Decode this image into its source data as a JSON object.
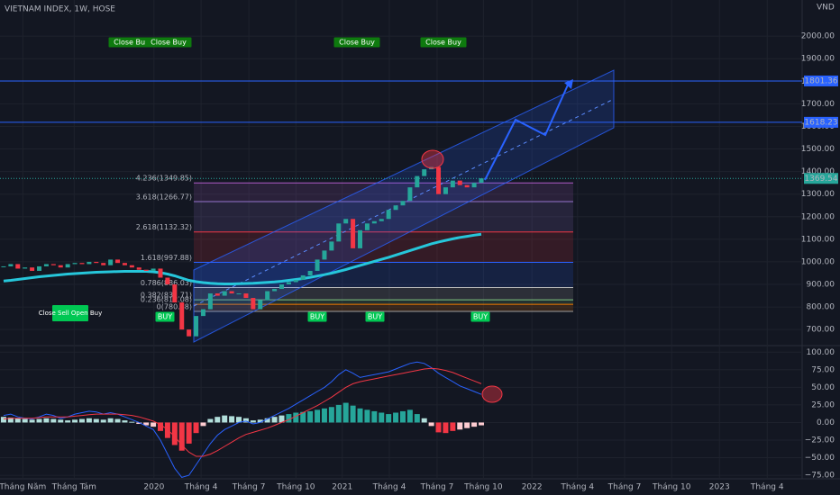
{
  "chart_data": {
    "type": "candlestick",
    "title": "VIETNAM INDEX, 1W, HOSE",
    "currency": "VND",
    "up_color": "#26a69a",
    "down_color": "#f23645",
    "categories": [
      null,
      null,
      null,
      null,
      null,
      null,
      null,
      null,
      null,
      null,
      null,
      null,
      null,
      null,
      null,
      null,
      null,
      null,
      null,
      null,
      null,
      null,
      null,
      null,
      null,
      null,
      null,
      null,
      null,
      null,
      null,
      null,
      null,
      null,
      null,
      null,
      null,
      null,
      null,
      null,
      null,
      null,
      null,
      null,
      null,
      null,
      null,
      null,
      null,
      null,
      null,
      null,
      null,
      null,
      null,
      null,
      null,
      null,
      null,
      null,
      null,
      null,
      null,
      null,
      null,
      null,
      null,
      null
    ],
    "close": [
      980,
      990,
      970,
      975,
      960,
      980,
      990,
      985,
      975,
      990,
      995,
      990,
      1000,
      995,
      985,
      1010,
      995,
      985,
      975,
      965,
      960,
      970,
      930,
      900,
      820,
      700,
      670,
      760,
      790,
      860,
      850,
      870,
      860,
      860,
      840,
      790,
      830,
      870,
      880,
      900,
      910,
      920,
      940,
      960,
      1010,
      1050,
      1090,
      1170,
      1190,
      1060,
      1140,
      1170,
      1180,
      1190,
      1230,
      1250,
      1270,
      1330,
      1380,
      1410,
      1420,
      1300,
      1330,
      1360,
      1340,
      1330,
      1350,
      1370
    ],
    "moving_average": {
      "color": "#26c6da",
      "values": [
        915,
        918,
        922,
        926,
        930,
        934,
        937,
        940,
        943,
        946,
        948,
        950,
        952,
        954,
        955,
        956,
        957,
        958,
        958,
        958,
        958,
        956,
        952,
        946,
        938,
        928,
        918,
        912,
        908,
        905,
        903,
        902,
        902,
        903,
        904,
        905,
        907,
        909,
        911,
        914,
        918,
        922,
        926,
        931,
        937,
        943,
        950,
        958,
        966,
        975,
        984,
        993,
        1002,
        1011,
        1020,
        1030,
        1040,
        1050,
        1060,
        1070,
        1080,
        1088,
        1095,
        1102,
        1108,
        1113,
        1118,
        1122
      ]
    },
    "xlim": [
      -0.5,
      112
    ],
    "xticks": [
      {
        "value": 2.7,
        "label": "Tháng Năm"
      },
      {
        "value": 9.9,
        "label": "Tháng Tám"
      },
      {
        "value": 21.1,
        "label": "2020"
      },
      {
        "value": 27.7,
        "label": "Tháng 4"
      },
      {
        "value": 34.4,
        "label": "Tháng 7"
      },
      {
        "value": 41,
        "label": "Tháng 10"
      },
      {
        "value": 47.5,
        "label": "2021"
      },
      {
        "value": 54.1,
        "label": "Tháng 4"
      },
      {
        "value": 60.8,
        "label": "Tháng 7"
      },
      {
        "value": 67.3,
        "label": "Tháng 10"
      },
      {
        "value": 74.1,
        "label": "2022"
      },
      {
        "value": 80.5,
        "label": "Tháng 4"
      },
      {
        "value": 87.1,
        "label": "Tháng 7"
      },
      {
        "value": 93.7,
        "label": "Tháng 10"
      },
      {
        "value": 100.4,
        "label": "2023"
      },
      {
        "value": 107.1,
        "label": "Tháng 4"
      }
    ],
    "ylim": [
      605,
      2160
    ],
    "yticks": [
      {
        "value": 700,
        "label": "700.00"
      },
      {
        "value": 800,
        "label": "800.00"
      },
      {
        "value": 900,
        "label": "900.00"
      },
      {
        "value": 1000,
        "label": "1000.00"
      },
      {
        "value": 1100,
        "label": "1100.00"
      },
      {
        "value": 1200,
        "label": "1200.00"
      },
      {
        "value": 1300,
        "label": "1300.00"
      },
      {
        "value": 1400,
        "label": "1400.00"
      },
      {
        "value": 1500,
        "label": "1500.00"
      },
      {
        "value": 1600,
        "label": "1600.00"
      },
      {
        "value": 1700,
        "label": "1700.00"
      },
      {
        "value": 1800,
        "label": "1800.00"
      },
      {
        "value": 1900,
        "label": "1900.00"
      },
      {
        "value": 2000,
        "label": "2000.00"
      }
    ],
    "price_lines": [
      1801.36,
      1618.23
    ],
    "last_price": 1369.54,
    "fib_levels": [
      {
        "value": 1349.85,
        "label": "4.236(1349.85)",
        "color": "#b05bc7"
      },
      {
        "value": 1266.77,
        "label": "3.618(1266.77)",
        "color": "#9575cd"
      },
      {
        "value": 1132.32,
        "label": "2.618(1132.32)",
        "color": "#f23645"
      },
      {
        "value": 997.88,
        "label": "1.618(997.88)",
        "color": "#2962ff"
      },
      {
        "value": 886.03,
        "label": "0.786(886.03)",
        "color": "#bbbbbb"
      },
      {
        "value": 831.71,
        "label": "0.382(831.71)",
        "color": "#81c784"
      },
      {
        "value": 812.08,
        "label": "0.236(812.08)",
        "color": "#f57c00"
      },
      {
        "value": 780.38,
        "label": "0(780.38)",
        "color": "#9e9e9e"
      }
    ],
    "signals": [
      "Close Buy",
      "Close Buy",
      "Close Buy",
      "Close Buy",
      "Close Sell Open Buy",
      "BUY",
      "BUY",
      "BUY",
      "BUY"
    ],
    "macd": {
      "ylim": [
        -80,
        108
      ],
      "yticks": [
        {
          "value": 100,
          "label": "100.00"
        },
        {
          "value": 75,
          "label": "75.00"
        },
        {
          "value": 50,
          "label": "50.00"
        },
        {
          "value": 25,
          "label": "25.00"
        },
        {
          "value": 0,
          "label": "0.00"
        },
        {
          "value": -25,
          "label": "−25.00"
        },
        {
          "value": -50,
          "label": "−50.00"
        },
        {
          "value": -75,
          "label": "−75.00"
        }
      ],
      "histogram": [
        8,
        7,
        6,
        5,
        4,
        5,
        6,
        5,
        4,
        3,
        4,
        5,
        6,
        5,
        4,
        6,
        5,
        3,
        1,
        -2,
        -4,
        -6,
        -12,
        -22,
        -32,
        -40,
        -30,
        -15,
        -5,
        5,
        8,
        10,
        9,
        8,
        6,
        3,
        4,
        6,
        8,
        10,
        12,
        14,
        15,
        16,
        18,
        20,
        22,
        25,
        28,
        24,
        20,
        18,
        16,
        14,
        12,
        14,
        16,
        18,
        12,
        6,
        -5,
        -14,
        -15,
        -12,
        -10,
        -8,
        -6,
        -4
      ],
      "line": {
        "color": "#2962ff",
        "values": [
          10,
          12,
          8,
          6,
          5,
          8,
          12,
          10,
          6,
          8,
          12,
          14,
          16,
          15,
          12,
          14,
          12,
          8,
          4,
          0,
          -5,
          -10,
          -25,
          -45,
          -65,
          -78,
          -75,
          -60,
          -45,
          -30,
          -18,
          -10,
          -5,
          0,
          2,
          -2,
          0,
          5,
          10,
          15,
          20,
          26,
          32,
          38,
          44,
          50,
          58,
          68,
          75,
          70,
          64,
          66,
          68,
          70,
          72,
          76,
          80,
          84,
          86,
          84,
          78,
          70,
          64,
          58,
          52,
          48,
          44,
          40
        ]
      },
      "signal": {
        "color": "#f23645",
        "values": [
          5,
          6,
          6,
          6,
          6,
          7,
          8,
          8,
          8,
          8,
          9,
          10,
          11,
          12,
          12,
          12,
          12,
          11,
          10,
          8,
          5,
          2,
          -3,
          -10,
          -20,
          -32,
          -42,
          -48,
          -48,
          -45,
          -40,
          -34,
          -28,
          -22,
          -17,
          -14,
          -11,
          -8,
          -4,
          0,
          4,
          9,
          14,
          19,
          24,
          30,
          36,
          43,
          50,
          55,
          58,
          60,
          62,
          64,
          66,
          68,
          70,
          72,
          74,
          76,
          77,
          76,
          74,
          71,
          67,
          63,
          59,
          55
        ]
      }
    }
  }
}
